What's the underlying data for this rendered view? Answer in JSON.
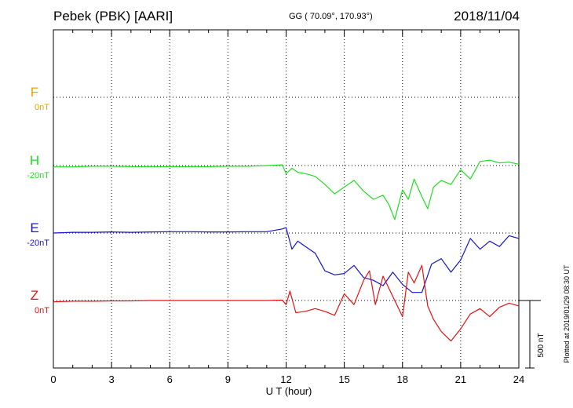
{
  "header": {
    "station": "Pebek (PBK)  [AARI]",
    "coords": "GG ( 70.09°, 170.93°)",
    "date": "2018/11/04"
  },
  "footer": {
    "plotted": "Plotted at 2019/01/29 08:30 UT"
  },
  "chart_data": {
    "type": "line",
    "xlabel": "U T (hour)",
    "xlim": [
      0,
      24
    ],
    "x_ticks": [
      "0",
      "3",
      "6",
      "9",
      "12",
      "15",
      "18",
      "21",
      "24"
    ],
    "scale_bar": {
      "label": "500 nT",
      "value_nT": 500
    },
    "grid": true,
    "channels": [
      {
        "name": "F",
        "offset_label": "0nT",
        "color": "#f0a000",
        "baseline_nT": 0,
        "x": [],
        "values": []
      },
      {
        "name": "H",
        "offset_label": "-20nT",
        "color": "#22dd22",
        "baseline_nT": 0,
        "x": [
          0,
          1,
          2,
          3,
          4,
          5,
          6,
          7,
          8,
          9,
          10,
          11,
          11.8,
          12,
          12.3,
          12.6,
          13,
          13.5,
          14,
          14.5,
          15,
          15.5,
          16,
          16.5,
          17,
          17.3,
          17.6,
          18,
          18.3,
          18.6,
          19,
          19.3,
          19.6,
          20,
          20.5,
          21,
          21.5,
          22,
          22.5,
          23,
          23.5,
          24
        ],
        "values": [
          -10,
          -10,
          -5,
          -5,
          -8,
          -8,
          -8,
          -8,
          -8,
          -5,
          -5,
          0,
          5,
          -60,
          -20,
          -50,
          -60,
          -80,
          -140,
          -210,
          -160,
          -110,
          -190,
          -250,
          -220,
          -290,
          -400,
          -180,
          -250,
          -100,
          -230,
          -320,
          -160,
          -110,
          -140,
          -30,
          -100,
          30,
          40,
          20,
          25,
          10
        ]
      },
      {
        "name": "E",
        "offset_label": "-20nT",
        "color": "#1414cc",
        "baseline_nT": 0,
        "x": [
          0,
          1,
          2,
          3,
          4,
          5,
          6,
          7,
          8,
          9,
          10,
          11,
          11.8,
          12,
          12.3,
          12.6,
          13,
          13.5,
          14,
          14.5,
          15,
          15.5,
          16,
          16.5,
          17,
          17.5,
          18,
          18.5,
          19,
          19.5,
          20,
          20.5,
          21,
          21.5,
          22,
          22.5,
          23,
          23.5,
          24
        ],
        "values": [
          0,
          5,
          5,
          8,
          5,
          8,
          10,
          10,
          8,
          8,
          10,
          10,
          30,
          40,
          -120,
          -60,
          -100,
          -150,
          -280,
          -310,
          -300,
          -240,
          -330,
          -350,
          -390,
          -290,
          -380,
          -440,
          -440,
          -230,
          -190,
          -290,
          -200,
          -40,
          -120,
          -60,
          -100,
          -20,
          -40
        ]
      },
      {
        "name": "Z",
        "offset_label": "0nT",
        "color": "#e81010",
        "baseline_nT": 0,
        "x": [
          0,
          1,
          2,
          3,
          4,
          5,
          6,
          7,
          8,
          9,
          10,
          11,
          11.8,
          12,
          12.2,
          12.5,
          13,
          13.5,
          14,
          14.5,
          15,
          15.5,
          16,
          16.3,
          16.6,
          17,
          17.5,
          18,
          18.3,
          18.6,
          19,
          19.3,
          19.6,
          20,
          20.5,
          21,
          21.5,
          22,
          22.5,
          23,
          23.5,
          24
        ],
        "values": [
          -10,
          -5,
          -5,
          -3,
          -3,
          0,
          0,
          0,
          0,
          0,
          0,
          0,
          3,
          -30,
          70,
          -90,
          -80,
          -60,
          -80,
          -110,
          50,
          -30,
          150,
          220,
          -30,
          180,
          30,
          -120,
          210,
          130,
          260,
          -40,
          -140,
          -230,
          -300,
          -210,
          -100,
          -60,
          -120,
          -50,
          -20,
          -40
        ]
      }
    ]
  }
}
